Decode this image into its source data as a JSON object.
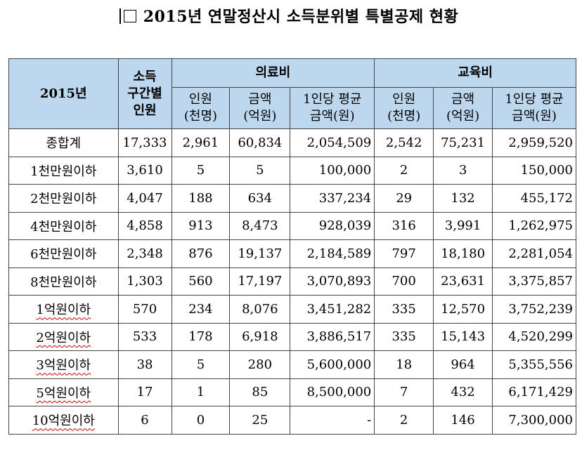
{
  "title": "2015년 연말정산시 소득분위별 특별공제 현황",
  "header": {
    "year": "2015년",
    "income_bracket_people": "소득\n구간별\n인원",
    "medical": "의료비",
    "education": "교육비",
    "sub": [
      "인원\n(천명)",
      "금액\n(억원)",
      "1인당 평균\n금액(원)",
      "인원\n(천명)",
      "금액\n(억원)",
      "1인당 평균\n금액(원)"
    ]
  },
  "rows": [
    [
      "종합계",
      "17,333",
      "2,961",
      "60,834",
      "2,054,509",
      "2,542",
      "75,231",
      "2,959,520"
    ],
    [
      "1천만원이하",
      "3,610",
      "5",
      "5",
      "100,000",
      "2",
      "3",
      "150,000"
    ],
    [
      "2천만원이하",
      "4,047",
      "188",
      "634",
      "337,234",
      "29",
      "132",
      "455,172"
    ],
    [
      "4천만원이하",
      "4,858",
      "913",
      "8,473",
      "928,039",
      "316",
      "3,991",
      "1,262,975"
    ],
    [
      "6천만원이하",
      "2,348",
      "876",
      "19,137",
      "2,184,589",
      "797",
      "18,180",
      "2,281,054"
    ],
    [
      "8천만원이하",
      "1,303",
      "560",
      "17,197",
      "3,070,893",
      "700",
      "23,631",
      "3,375,857"
    ],
    [
      "1억원이하",
      "570",
      "234",
      "8,076",
      "3,451,282",
      "335",
      "12,570",
      "3,752,239"
    ],
    [
      "2억원이하",
      "533",
      "178",
      "6,918",
      "3,886,517",
      "335",
      "15,143",
      "4,520,299"
    ],
    [
      "3억원이하",
      "38",
      "5",
      "280",
      "5,600,000",
      "18",
      "964",
      "5,355,556"
    ],
    [
      "5억원이하",
      "17",
      "1",
      "85",
      "8,500,000",
      "7",
      "432",
      "6,171,429"
    ],
    [
      "10억원이하",
      "6",
      "0",
      "25",
      "-",
      "2",
      "146",
      "7,300,000"
    ]
  ]
}
